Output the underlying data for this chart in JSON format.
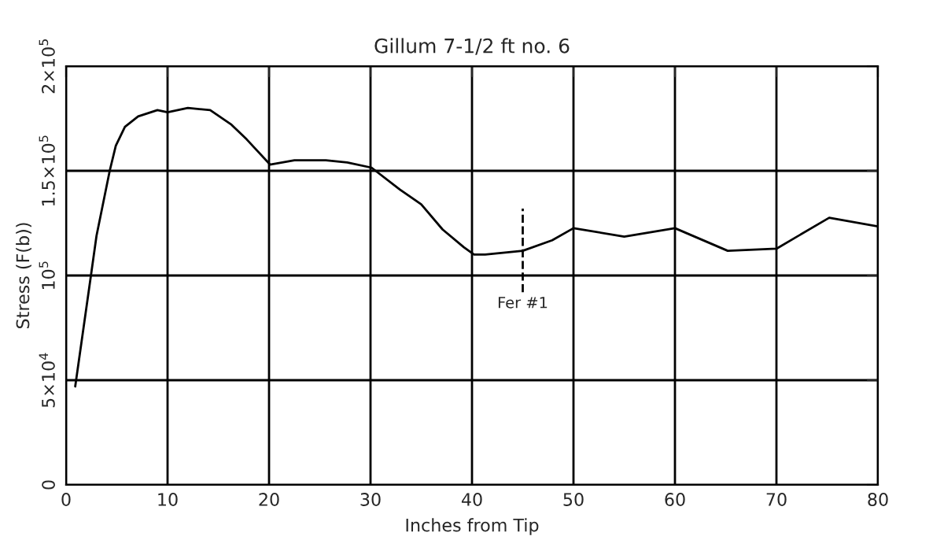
{
  "chart_data": {
    "type": "line",
    "title": "Gillum 7-1/2 ft no. 6",
    "xlabel": "Inches from Tip",
    "ylabel": "Stress (F(b))",
    "x": [
      0.9,
      2.45,
      3,
      4.3,
      4.9,
      5.8,
      7.1,
      9,
      10,
      12,
      14.2,
      16.3,
      17.8,
      20.1,
      22.5,
      25.6,
      27.7,
      30.1,
      32.9,
      35,
      37.1,
      39.2,
      40.2,
      41.3,
      45,
      47.9,
      50,
      55,
      60,
      65.2,
      70,
      75.2,
      80
    ],
    "series": [
      {
        "color": "#000000",
        "values": [
          47000,
          100000,
          119000,
          150000,
          162000,
          171000,
          176000,
          179000,
          178000,
          180000,
          179000,
          172000,
          165000,
          153000,
          155000,
          155000,
          154000,
          151500,
          141000,
          134000,
          122000,
          113500,
          110000,
          110000,
          111800,
          116800,
          122600,
          118600,
          122600,
          111800,
          112800,
          127600,
          123400
        ]
      }
    ],
    "xlim": [
      0,
      80
    ],
    "xticks": [
      0,
      10,
      20,
      30,
      40,
      50,
      60,
      70,
      80
    ],
    "ylim": [
      0,
      200000
    ],
    "yticks": [
      0,
      {
        "value": 50000,
        "label": "5×10$^{4}$"
      },
      {
        "value": 100000,
        "label": "10$^{5}$"
      },
      {
        "value": 150000,
        "label": "1.5×10$^{5}$"
      },
      {
        "value": 200000,
        "label": "2×10$^{5}$"
      }
    ],
    "ref_lines": [
      {
        "axis": "x",
        "value": 45,
        "label": "Fer #1",
        "color": "#000000",
        "line_style": "dashed"
      }
    ],
    "grid": true,
    "marker": "none",
    "line_style": "solid",
    "legend": false
  }
}
